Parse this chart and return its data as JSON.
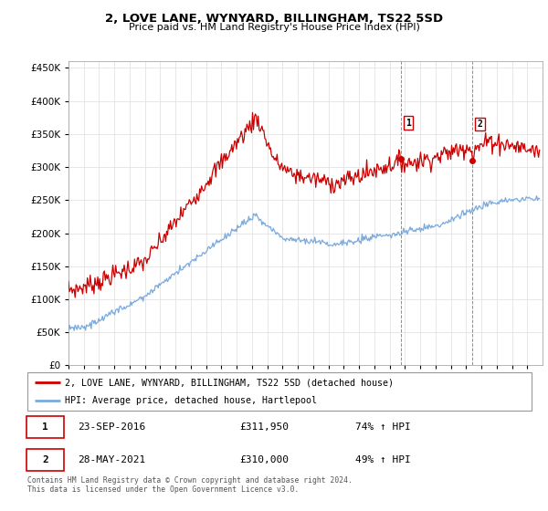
{
  "title": "2, LOVE LANE, WYNYARD, BILLINGHAM, TS22 5SD",
  "subtitle": "Price paid vs. HM Land Registry's House Price Index (HPI)",
  "legend_label_red": "2, LOVE LANE, WYNYARD, BILLINGHAM, TS22 5SD (detached house)",
  "legend_label_blue": "HPI: Average price, detached house, Hartlepool",
  "sale1_date": "23-SEP-2016",
  "sale1_price": "£311,950",
  "sale1_hpi": "74% ↑ HPI",
  "sale2_date": "28-MAY-2021",
  "sale2_price": "£310,000",
  "sale2_hpi": "49% ↑ HPI",
  "footer": "Contains HM Land Registry data © Crown copyright and database right 2024.\nThis data is licensed under the Open Government Licence v3.0.",
  "ylim": [
    0,
    460000
  ],
  "yticks": [
    0,
    50000,
    100000,
    150000,
    200000,
    250000,
    300000,
    350000,
    400000,
    450000
  ],
  "red_color": "#cc0000",
  "blue_color": "#7aaadd",
  "vline_color": "#dd4444",
  "grid_color": "#dddddd",
  "sale1_x": 2016.72,
  "sale1_y": 311950,
  "sale2_x": 2021.41,
  "sale2_y": 310000,
  "xlim_start": 1995,
  "xlim_end": 2026
}
